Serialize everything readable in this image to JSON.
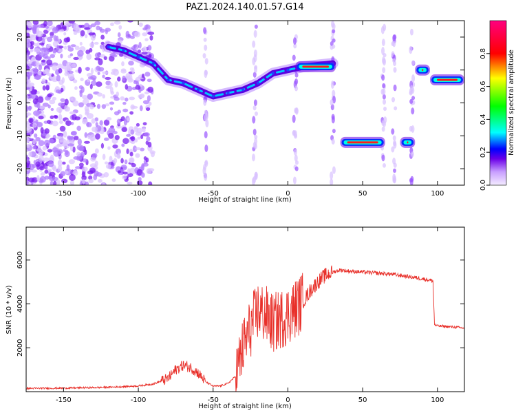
{
  "figure_title": "PAZ1.2024.140.01.57.G14",
  "chart_data": [
    {
      "type": "heatmap",
      "title": "PAZ1.2024.140.01.57.G14",
      "xlabel": "Height of straight line (km)",
      "ylabel": "Frequency (Hz)",
      "xlim": [
        -175,
        118
      ],
      "ylim": [
        -25,
        25
      ],
      "xticks": [
        -150,
        -100,
        -50,
        0,
        50,
        100
      ],
      "yticks": [
        -20,
        -10,
        0,
        10,
        20
      ],
      "colorbar": {
        "label": "Normalized spectral amplitude",
        "range": [
          0,
          1
        ],
        "ticks": [
          "0.0",
          "0.2",
          "0.4",
          "0.6",
          "0.8"
        ]
      },
      "ridge": [
        {
          "x": -120,
          "y": 17
        },
        {
          "x": -110,
          "y": 16
        },
        {
          "x": -100,
          "y": 14
        },
        {
          "x": -90,
          "y": 12
        },
        {
          "x": -80,
          "y": 7
        },
        {
          "x": -70,
          "y": 6
        },
        {
          "x": -60,
          "y": 4
        },
        {
          "x": -50,
          "y": 2
        },
        {
          "x": -40,
          "y": 3
        },
        {
          "x": -30,
          "y": 4
        },
        {
          "x": -20,
          "y": 6
        },
        {
          "x": -10,
          "y": 9
        },
        {
          "x": 0,
          "y": 10
        },
        {
          "x": 10,
          "y": 11
        },
        {
          "x": 30,
          "y": 12
        }
      ],
      "bands": [
        {
          "x_start": 5,
          "x_end": 32,
          "y": 11
        },
        {
          "x_start": 35,
          "x_end": 65,
          "y": -12
        },
        {
          "x_start": 75,
          "x_end": 85,
          "y": -12
        },
        {
          "x_start": 85,
          "x_end": 95,
          "y": 10
        },
        {
          "x_start": 95,
          "x_end": 118,
          "y": 7
        }
      ]
    },
    {
      "type": "line",
      "xlabel": "Height of straight line (km)",
      "ylabel": "SNR (10 * v/v)",
      "xlim": [
        -175,
        118
      ],
      "ylim": [
        0,
        7500
      ],
      "xticks": [
        -150,
        -100,
        -50,
        0,
        50,
        100
      ],
      "yticks": [
        2000,
        4000,
        6000
      ],
      "series_color": "#e8302a",
      "x": [
        -175,
        -150,
        -120,
        -100,
        -90,
        -80,
        -75,
        -70,
        -65,
        -60,
        -55,
        -50,
        -45,
        -40,
        -35,
        -30,
        -25,
        -20,
        -15,
        -10,
        -5,
        0,
        5,
        10,
        15,
        20,
        25,
        30,
        35,
        40,
        50,
        60,
        70,
        80,
        90,
        97,
        98,
        100,
        110,
        118
      ],
      "values": [
        150,
        160,
        200,
        260,
        350,
        600,
        1000,
        1200,
        1100,
        850,
        450,
        250,
        260,
        380,
        700,
        2000,
        2900,
        3700,
        3500,
        3100,
        3300,
        3500,
        3800,
        4100,
        4600,
        5000,
        5300,
        5450,
        5550,
        5500,
        5450,
        5400,
        5350,
        5250,
        5150,
        5050,
        3050,
        3000,
        2950,
        2900
      ]
    }
  ]
}
